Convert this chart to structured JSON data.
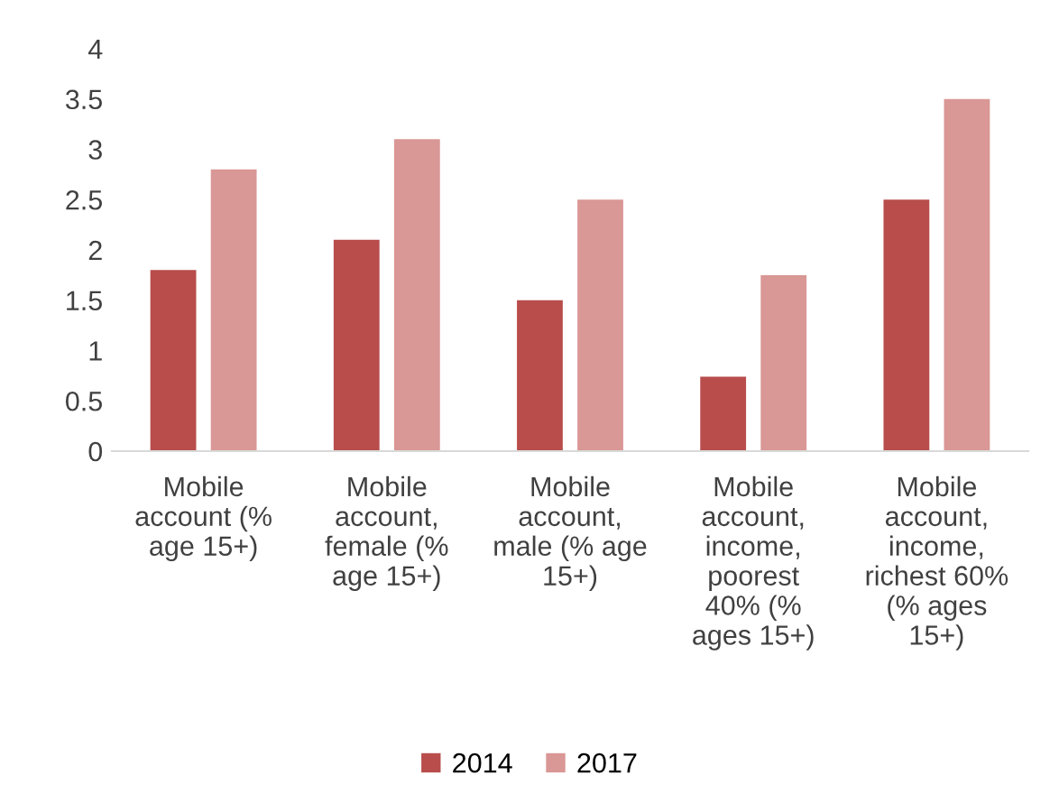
{
  "chart_data": {
    "type": "bar",
    "categories": [
      "Mobile\naccount (%\nage 15+)",
      "Mobile\naccount,\nfemale (%\nage 15+)",
      "Mobile\naccount,\nmale (% age\n15+)",
      "Mobile\naccount,\nincome,\npoorest\n40% (%\nages 15+)",
      "Mobile\naccount,\nincome,\nrichest 60%\n(% ages\n15+)"
    ],
    "series": [
      {
        "name": "2014",
        "color": "#b84d4b",
        "values": [
          1.8,
          2.1,
          1.5,
          0.74,
          2.5
        ]
      },
      {
        "name": "2017",
        "color": "#d99795",
        "values": [
          2.8,
          3.1,
          2.5,
          1.75,
          3.5
        ]
      }
    ],
    "ylim": [
      0,
      4
    ],
    "yticks": [
      0,
      0.5,
      1,
      1.5,
      2,
      2.5,
      3,
      3.5,
      4
    ],
    "grid": false,
    "legend": "bottom"
  }
}
